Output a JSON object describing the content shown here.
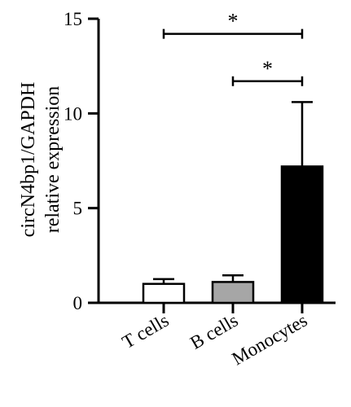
{
  "chart_data": {
    "type": "bar",
    "categories": [
      "T cells",
      "B cells",
      "Monocytes"
    ],
    "values": [
      1.0,
      1.1,
      7.2
    ],
    "error_upper": [
      1.25,
      1.45,
      10.6
    ],
    "bar_colors": [
      "#ffffff",
      "#a6a6a6",
      "#000000"
    ],
    "ylabel_line1": "circN4bp1/GAPDH",
    "ylabel_line2": "relative expression",
    "ylim": [
      0,
      15
    ],
    "yticks": [
      0,
      5,
      10,
      15
    ],
    "ytick_labels": [
      "0",
      "5",
      "10",
      "15"
    ],
    "grid": false,
    "significance": [
      {
        "from": "T cells",
        "to": "Monocytes",
        "label": "*"
      },
      {
        "from": "B cells",
        "to": "Monocytes",
        "label": "*"
      }
    ]
  }
}
